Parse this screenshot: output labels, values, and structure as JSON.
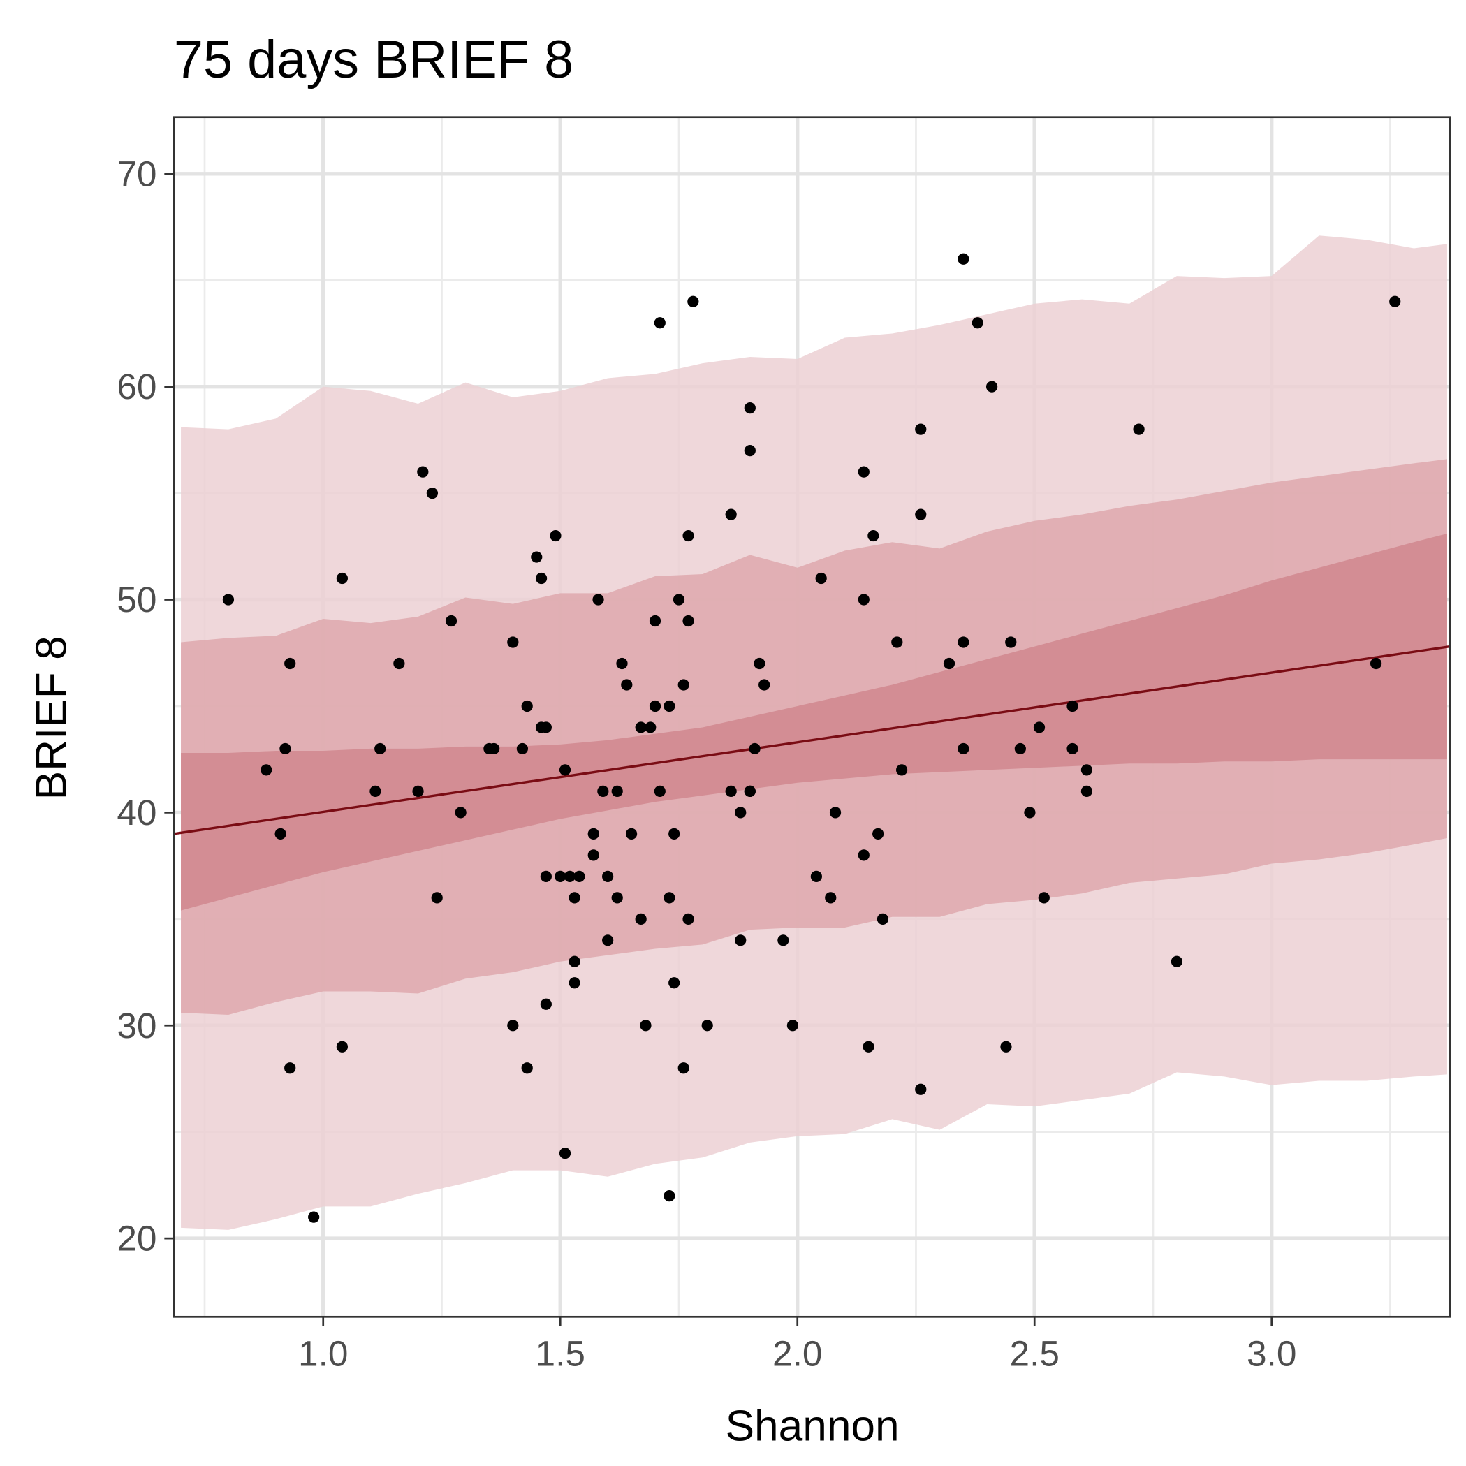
{
  "chart_data": {
    "type": "scatter",
    "title": "75 days BRIEF 8",
    "x_label": "Shannon",
    "y_label": "BRIEF 8",
    "xlim": [
      0.685,
      3.376
    ],
    "ylim": [
      16.32,
      72.66
    ],
    "xticks": [
      {
        "value": 1,
        "label": "1.0"
      },
      {
        "value": 1.5,
        "label": "1.5"
      },
      {
        "value": 2,
        "label": "2.0"
      },
      {
        "value": 2.5,
        "label": "2.5"
      },
      {
        "value": 3,
        "label": "3.0"
      }
    ],
    "yticks": [
      20,
      30,
      40,
      50,
      60,
      70
    ],
    "xminorticks": [
      0.75,
      1.25,
      1.75,
      2.25,
      2.75,
      3.25
    ],
    "yminorticks": [
      25,
      35,
      45,
      55,
      65
    ],
    "grid": true,
    "band_x": [
      0.7,
      0.8,
      0.9,
      1.0,
      1.1,
      1.2,
      1.3,
      1.4,
      1.5,
      1.6,
      1.7,
      1.8,
      1.9,
      2.0,
      2.1,
      2.2,
      2.3,
      2.4,
      2.5,
      2.6,
      2.7,
      2.8,
      2.9,
      3.0,
      3.1,
      3.2,
      3.3,
      3.37
    ],
    "bands": [
      {
        "color": "#ecd0d4",
        "upper": [
          58.1,
          58.0,
          58.5,
          60.0,
          59.8,
          59.2,
          60.2,
          59.5,
          59.8,
          60.4,
          60.6,
          61.1,
          61.4,
          61.3,
          62.3,
          62.5,
          62.9,
          63.4,
          63.9,
          64.1,
          63.9,
          65.2,
          65.1,
          65.2,
          67.1,
          66.9,
          66.5,
          66.7
        ],
        "lower": [
          20.5,
          20.4,
          20.9,
          21.5,
          21.5,
          22.1,
          22.6,
          23.2,
          23.2,
          22.9,
          23.5,
          23.8,
          24.5,
          24.8,
          24.9,
          25.6,
          25.1,
          26.3,
          26.2,
          26.5,
          26.8,
          27.8,
          27.6,
          27.2,
          27.4,
          27.4,
          27.6,
          27.7
        ]
      },
      {
        "color": "#dea8ad",
        "upper": [
          48.0,
          48.2,
          48.3,
          49.1,
          48.9,
          49.2,
          50.1,
          49.8,
          50.3,
          50.3,
          51.1,
          51.2,
          52.1,
          51.5,
          52.3,
          52.7,
          52.4,
          53.2,
          53.7,
          54.0,
          54.4,
          54.7,
          55.1,
          55.5,
          55.8,
          56.1,
          56.4,
          56.6
        ],
        "lower": [
          30.6,
          30.5,
          31.1,
          31.6,
          31.6,
          31.5,
          32.2,
          32.5,
          33.0,
          33.3,
          33.6,
          33.8,
          34.5,
          34.6,
          34.6,
          35.1,
          35.1,
          35.7,
          35.9,
          36.2,
          36.7,
          36.9,
          37.1,
          37.6,
          37.8,
          38.1,
          38.5,
          38.8
        ]
      },
      {
        "color": "#d0878e",
        "upper": [
          42.8,
          42.8,
          42.9,
          42.9,
          43.0,
          43.0,
          43.1,
          43.1,
          43.2,
          43.4,
          43.7,
          44.0,
          44.5,
          45.0,
          45.5,
          46.0,
          46.6,
          47.2,
          47.8,
          48.4,
          49.0,
          49.6,
          50.2,
          50.9,
          51.5,
          52.1,
          52.7,
          53.1
        ],
        "lower": [
          35.4,
          36.0,
          36.6,
          37.2,
          37.7,
          38.2,
          38.7,
          39.2,
          39.7,
          40.1,
          40.5,
          40.8,
          41.1,
          41.4,
          41.6,
          41.8,
          41.9,
          42.0,
          42.1,
          42.2,
          42.3,
          42.3,
          42.4,
          42.4,
          42.5,
          42.5,
          42.5,
          42.5
        ]
      }
    ],
    "fit": {
      "color": "#7a0c14",
      "x": [
        0.685,
        3.376
      ],
      "y": [
        39.0,
        47.8
      ]
    },
    "points": {
      "color": "#000000",
      "x": [
        0.8,
        0.88,
        0.91,
        0.92,
        0.93,
        0.93,
        0.98,
        1.04,
        1.04,
        1.11,
        1.12,
        1.16,
        1.2,
        1.21,
        1.23,
        1.24,
        1.27,
        1.29,
        1.35,
        1.36,
        1.4,
        1.4,
        1.42,
        1.43,
        1.43,
        1.45,
        1.46,
        1.46,
        1.47,
        1.47,
        1.47,
        1.49,
        1.5,
        1.51,
        1.51,
        1.52,
        1.53,
        1.53,
        1.53,
        1.54,
        1.57,
        1.57,
        1.58,
        1.59,
        1.6,
        1.6,
        1.62,
        1.62,
        1.63,
        1.64,
        1.65,
        1.67,
        1.67,
        1.68,
        1.69,
        1.7,
        1.7,
        1.71,
        1.71,
        1.73,
        1.73,
        1.73,
        1.74,
        1.74,
        1.75,
        1.76,
        1.76,
        1.77,
        1.77,
        1.77,
        1.78,
        1.81,
        1.86,
        1.86,
        1.88,
        1.88,
        1.9,
        1.9,
        1.9,
        1.9,
        1.91,
        1.92,
        1.93,
        1.97,
        1.99,
        2.04,
        2.05,
        2.07,
        2.08,
        2.14,
        2.14,
        2.14,
        2.15,
        2.16,
        2.17,
        2.18,
        2.21,
        2.22,
        2.26,
        2.26,
        2.26,
        2.32,
        2.35,
        2.35,
        2.35,
        2.38,
        2.41,
        2.44,
        2.45,
        2.47,
        2.49,
        2.51,
        2.52,
        2.58,
        2.58,
        2.61,
        2.61,
        2.72,
        2.8,
        3.22,
        3.26
      ],
      "y": [
        50,
        42,
        39,
        43,
        47,
        28,
        21,
        51,
        29,
        41,
        43,
        47,
        41,
        56,
        55,
        36,
        49,
        40,
        43,
        43,
        30,
        48,
        43,
        45,
        28,
        52,
        51,
        44,
        44,
        37,
        31,
        53,
        37,
        42,
        24,
        37,
        36,
        33,
        32,
        37,
        39,
        38,
        50,
        41,
        37,
        34,
        41,
        36,
        47,
        46,
        39,
        35,
        44,
        30,
        44,
        49,
        45,
        41,
        63,
        45,
        36,
        22,
        39,
        32,
        50,
        46,
        28,
        35,
        49,
        53,
        64,
        30,
        54,
        41,
        34,
        40,
        41,
        59,
        57,
        41,
        43,
        47,
        46,
        34,
        30,
        37,
        51,
        36,
        40,
        50,
        56,
        38,
        29,
        53,
        39,
        35,
        48,
        42,
        58,
        54,
        27,
        47,
        43,
        66,
        48,
        63,
        60,
        29,
        48,
        43,
        40,
        44,
        36,
        45,
        43,
        41,
        42,
        58,
        33,
        47,
        64
      ]
    }
  }
}
